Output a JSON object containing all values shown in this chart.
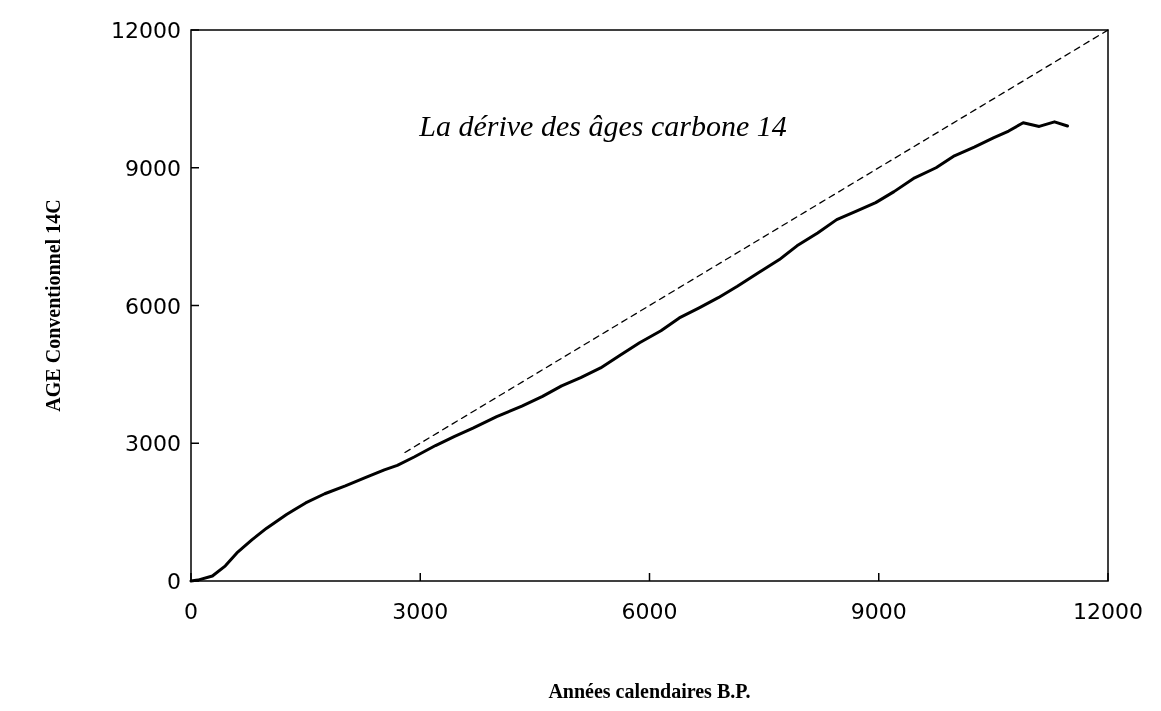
{
  "chart_data": {
    "type": "line",
    "title": "La dérive des âges carbone 14",
    "xlabel": "Années calendaires B.P.",
    "ylabel": "AGE Conventionnel 14C",
    "xlim": [
      0,
      12000
    ],
    "ylim": [
      0,
      12000
    ],
    "xticks": [
      0,
      3000,
      6000,
      9000,
      12000
    ],
    "yticks": [
      0,
      3000,
      6000,
      9000,
      12000
    ],
    "grid": false,
    "series": [
      {
        "color": "#000000",
        "line_style": "solid",
        "x": [
          0,
          90,
          280,
          450,
          600,
          800,
          990,
          1250,
          1500,
          1750,
          2020,
          2280,
          2530,
          2700,
          2920,
          3200,
          3450,
          3690,
          4000,
          4330,
          4600,
          4850,
          5100,
          5360,
          5600,
          5870,
          6150,
          6390,
          6650,
          6900,
          7150,
          7420,
          7700,
          7930,
          8200,
          8450,
          8700,
          8960,
          9200,
          9470,
          9750,
          9990,
          10250,
          10500,
          10700,
          10890,
          11100,
          11300,
          11470
        ],
        "values": [
          0,
          20,
          110,
          330,
          610,
          900,
          1150,
          1450,
          1700,
          1900,
          2070,
          2250,
          2420,
          2520,
          2700,
          2950,
          3150,
          3330,
          3580,
          3810,
          4020,
          4250,
          4430,
          4640,
          4900,
          5190,
          5450,
          5730,
          5950,
          6170,
          6420,
          6710,
          7000,
          7300,
          7580,
          7870,
          8050,
          8240,
          8480,
          8780,
          9000,
          9260,
          9450,
          9650,
          9800,
          9980,
          9900,
          10000,
          9910
        ]
      },
      {
        "color": "#000000",
        "line_style": "dashed",
        "x": [
          2800,
          12000
        ],
        "values": [
          2800,
          12000
        ]
      }
    ]
  }
}
